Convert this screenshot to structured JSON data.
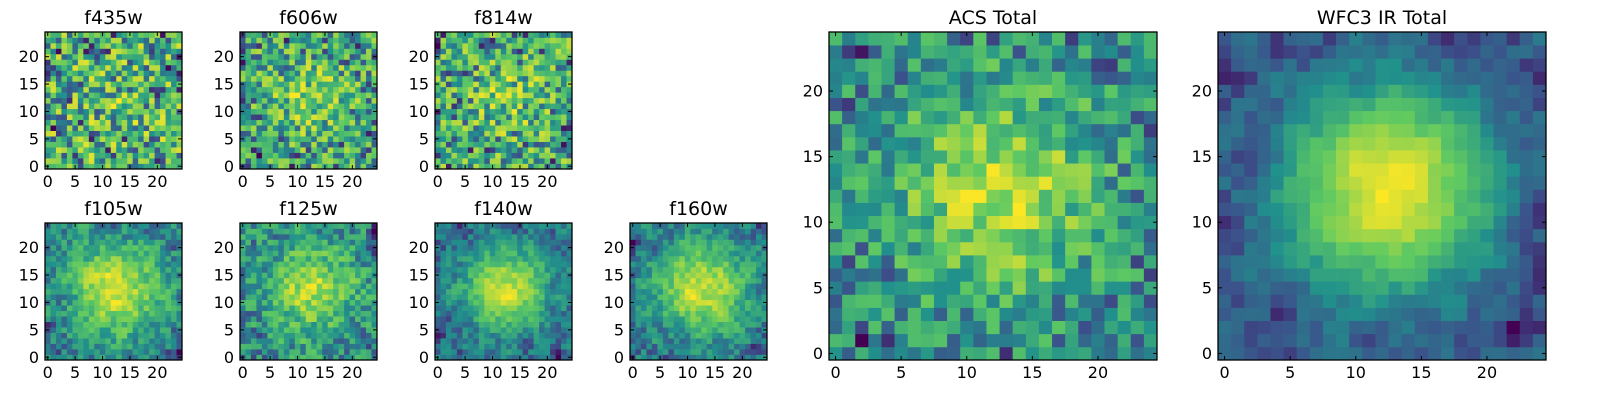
{
  "chart_data": [
    {
      "id": "f435w",
      "type": "heatmap",
      "title": "f435w",
      "grid_size": 25,
      "ticks": [
        0,
        5,
        10,
        15,
        20
      ],
      "colormap": "viridis",
      "seed": 11,
      "center_strength": 0.05,
      "spread": 0.18,
      "noise": 1.0,
      "smooth": 0.0
    },
    {
      "id": "f606w",
      "type": "heatmap",
      "title": "f606w",
      "grid_size": 25,
      "ticks": [
        0,
        5,
        10,
        15,
        20
      ],
      "colormap": "viridis",
      "seed": 23,
      "center_strength": 0.18,
      "spread": 0.2,
      "noise": 1.0,
      "smooth": 0.0
    },
    {
      "id": "f814w",
      "type": "heatmap",
      "title": "f814w",
      "grid_size": 25,
      "ticks": [
        0,
        5,
        10,
        15,
        20
      ],
      "colormap": "viridis",
      "seed": 37,
      "center_strength": 0.12,
      "spread": 0.2,
      "noise": 1.0,
      "smooth": 0.0
    },
    {
      "id": "f105w",
      "type": "heatmap",
      "title": "f105w",
      "grid_size": 25,
      "ticks": [
        0,
        5,
        10,
        15,
        20
      ],
      "colormap": "viridis",
      "seed": 41,
      "center_strength": 0.45,
      "spread": 0.22,
      "noise": 0.8,
      "smooth": 0.4
    },
    {
      "id": "f125w",
      "type": "heatmap",
      "title": "f125w",
      "grid_size": 25,
      "ticks": [
        0,
        5,
        10,
        15,
        20
      ],
      "colormap": "viridis",
      "seed": 53,
      "center_strength": 0.35,
      "spread": 0.22,
      "noise": 0.9,
      "smooth": 0.3
    },
    {
      "id": "f140w",
      "type": "heatmap",
      "title": "f140w",
      "grid_size": 25,
      "ticks": [
        0,
        5,
        10,
        15,
        20
      ],
      "colormap": "viridis",
      "seed": 67,
      "center_strength": 0.55,
      "spread": 0.2,
      "noise": 0.8,
      "smooth": 0.45
    },
    {
      "id": "f160w",
      "type": "heatmap",
      "title": "f160w",
      "grid_size": 25,
      "ticks": [
        0,
        5,
        10,
        15,
        20
      ],
      "colormap": "viridis",
      "seed": 79,
      "center_strength": 0.5,
      "spread": 0.22,
      "noise": 0.8,
      "smooth": 0.45
    },
    {
      "id": "acs_total",
      "type": "heatmap",
      "title": "ACS Total",
      "grid_size": 25,
      "ticks": [
        0,
        5,
        10,
        15,
        20
      ],
      "colormap": "viridis",
      "seed": 97,
      "center_strength": 0.35,
      "spread": 0.22,
      "noise": 0.75,
      "smooth": 0.1
    },
    {
      "id": "wfc3_ir_total",
      "type": "heatmap",
      "title": "WFC3 IR Total",
      "grid_size": 25,
      "ticks": [
        0,
        5,
        10,
        15,
        20
      ],
      "colormap": "viridis",
      "seed": 113,
      "center_strength": 0.75,
      "spread": 0.2,
      "noise": 0.55,
      "smooth": 0.6
    }
  ],
  "colors": {
    "viridis_stops": [
      "#440154",
      "#3b528b",
      "#21918c",
      "#5ec962",
      "#fde725"
    ],
    "background": "#ffffff",
    "frame": "#000000"
  }
}
